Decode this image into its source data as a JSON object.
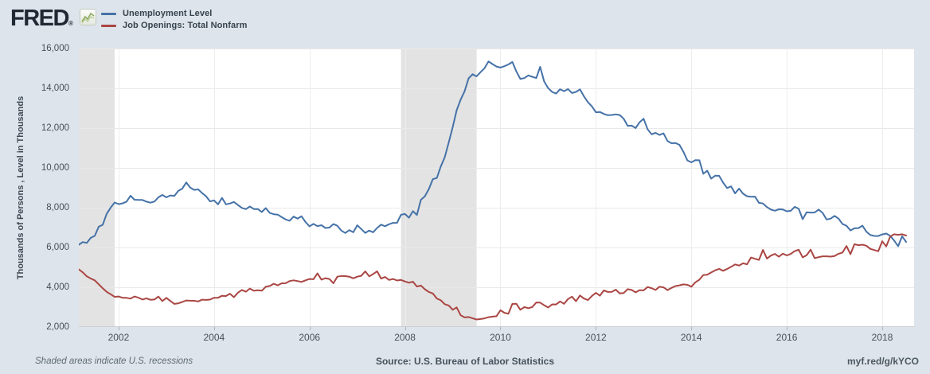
{
  "header": {
    "logo_text": "FRED",
    "logo_registered_mark": "®"
  },
  "legend": {
    "items": [
      {
        "label": "Unemployment Level",
        "color": "#4572a7"
      },
      {
        "label": "Job Openings: Total Nonfarm",
        "color": "#aa4643"
      }
    ]
  },
  "axes": {
    "y_title": "Thousands of Persons , Level in Thousands",
    "y_ticks": [
      {
        "value": 16000,
        "label": "16,000"
      },
      {
        "value": 14000,
        "label": "14,000"
      },
      {
        "value": 12000,
        "label": "12,000"
      },
      {
        "value": 10000,
        "label": "10,000"
      },
      {
        "value": 8000,
        "label": "8,000"
      },
      {
        "value": 6000,
        "label": "6,000"
      },
      {
        "value": 4000,
        "label": "4,000"
      },
      {
        "value": 2000,
        "label": "2,000"
      }
    ],
    "x_ticks": [
      {
        "year": 2002,
        "label": "2002"
      },
      {
        "year": 2004,
        "label": "2004"
      },
      {
        "year": 2006,
        "label": "2006"
      },
      {
        "year": 2008,
        "label": "2008"
      },
      {
        "year": 2010,
        "label": "2010"
      },
      {
        "year": 2012,
        "label": "2012"
      },
      {
        "year": 2014,
        "label": "2014"
      },
      {
        "year": 2016,
        "label": "2016"
      },
      {
        "year": 2018,
        "label": "2018"
      }
    ]
  },
  "footer": {
    "note": "Shaded areas indicate U.S. recessions",
    "source": "Source: U.S. Bureau of Labor Statistics",
    "link": "myf.red/g/kYCO"
  },
  "colors": {
    "page_background": "#dde4eb",
    "plot_background": "#ffffff",
    "recession_band": "#e3e3e3",
    "gridline": "#e9e9e9",
    "vertical_gridline": "#ededed",
    "axis_line": "#c9ced3",
    "series_blue": "#4572a7",
    "series_red": "#aa4643"
  },
  "chart_data": {
    "type": "line",
    "title": "Unemployment Level vs Job Openings: Total Nonfarm",
    "xlabel": "",
    "ylabel": "Thousands of Persons , Level in Thousands",
    "xlim": [
      2001.1667,
      2018.6667
    ],
    "ylim": [
      2000,
      16000
    ],
    "grid": true,
    "legend_position": "top-left",
    "x_start": 2001.1667,
    "x_step_years": 0.0833333,
    "frequency": "monthly",
    "recessions": [
      [
        2001.1667,
        2001.9167
      ],
      [
        2007.9167,
        2009.5
      ]
    ],
    "series": [
      {
        "name": "Unemployment Level",
        "color": "#4572a7",
        "values": [
          6141,
          6271,
          6226,
          6484,
          6583,
          7042,
          7142,
          7694,
          8003,
          8258,
          8182,
          8215,
          8304,
          8599,
          8399,
          8393,
          8390,
          8304,
          8251,
          8307,
          8520,
          8640,
          8520,
          8618,
          8588,
          8842,
          8957,
          9266,
          9011,
          8896,
          8921,
          8732,
          8576,
          8317,
          8370,
          8167,
          8491,
          8170,
          8212,
          8286,
          8136,
          7990,
          7927,
          8061,
          7932,
          7934,
          7784,
          7980,
          7737,
          7672,
          7651,
          7524,
          7406,
          7345,
          7553,
          7453,
          7566,
          7279,
          7064,
          7184,
          7072,
          7120,
          6980,
          7001,
          7175,
          7091,
          6847,
          6727,
          6872,
          6762,
          7116,
          6927,
          6731,
          6850,
          6766,
          6979,
          7149,
          7067,
          7170,
          7237,
          7240,
          7645,
          7685,
          7497,
          7822,
          7637,
          8395,
          8575,
          8937,
          9438,
          9494,
          10074,
          10538,
          11286,
          12058,
          12898,
          13426,
          13853,
          14499,
          14707,
          14601,
          14814,
          15009,
          15352,
          15219,
          15098,
          15046,
          15113,
          15202,
          15325,
          14849,
          14474,
          14512,
          14648,
          14579,
          14516,
          15081,
          14348,
          14013,
          13820,
          13737,
          13957,
          13855,
          13962,
          13763,
          13818,
          13948,
          13594,
          13302,
          13093,
          12797,
          12813,
          12713,
          12646,
          12660,
          12692,
          12656,
          12471,
          12115,
          12124,
          12005,
          12298,
          12471,
          11950,
          11689,
          11760,
          11654,
          11735,
          11353,
          11241,
          11251,
          11161,
          10814,
          10376,
          10280,
          10387,
          10384,
          9702,
          9859,
          9460,
          9608,
          9599,
          9262,
          8990,
          9071,
          8718,
          8962,
          8705,
          8575,
          8549,
          8555,
          8245,
          8211,
          8032,
          7902,
          7848,
          7921,
          7907,
          7820,
          7845,
          8044,
          7945,
          7420,
          7772,
          7751,
          7759,
          7904,
          7740,
          7409,
          7447,
          7587,
          7451,
          7178,
          7091,
          6858,
          6962,
          6977,
          7096,
          6795,
          6624,
          6580,
          6576,
          6655,
          6701,
          6583,
          6346,
          6065,
          6564,
          6280
        ]
      },
      {
        "name": "Job Openings: Total Nonfarm",
        "color": "#aa4643",
        "values": [
          4900,
          4750,
          4550,
          4440,
          4350,
          4150,
          3950,
          3770,
          3650,
          3520,
          3534,
          3472,
          3468,
          3430,
          3536,
          3475,
          3386,
          3442,
          3371,
          3385,
          3532,
          3302,
          3470,
          3313,
          3163,
          3193,
          3260,
          3334,
          3325,
          3321,
          3287,
          3377,
          3364,
          3379,
          3471,
          3472,
          3572,
          3561,
          3676,
          3499,
          3729,
          3866,
          3774,
          3938,
          3824,
          3853,
          3830,
          4025,
          4066,
          4175,
          4097,
          4200,
          4204,
          4312,
          4350,
          4312,
          4267,
          4348,
          4414,
          4402,
          4697,
          4383,
          4454,
          4416,
          4199,
          4532,
          4570,
          4561,
          4532,
          4450,
          4532,
          4578,
          4800,
          4550,
          4663,
          4803,
          4436,
          4516,
          4369,
          4416,
          4340,
          4369,
          4293,
          4227,
          4281,
          4036,
          4085,
          3900,
          3764,
          3690,
          3435,
          3344,
          3147,
          3083,
          2870,
          2990,
          2596,
          2482,
          2503,
          2442,
          2379,
          2404,
          2435,
          2497,
          2525,
          2542,
          2843,
          2716,
          2669,
          3163,
          3171,
          2869,
          3006,
          2948,
          3006,
          3236,
          3229,
          3096,
          2983,
          3139,
          3138,
          3287,
          3169,
          3409,
          3530,
          3295,
          3589,
          3433,
          3358,
          3566,
          3720,
          3577,
          3846,
          3764,
          3773,
          3881,
          3690,
          3711,
          3903,
          3865,
          3743,
          3856,
          3842,
          4013,
          3955,
          3863,
          4029,
          3994,
          3858,
          3970,
          4060,
          4095,
          4142,
          4125,
          4029,
          4249,
          4380,
          4616,
          4631,
          4744,
          4853,
          4922,
          4829,
          4921,
          5028,
          5148,
          5093,
          5205,
          5158,
          5497,
          5431,
          5378,
          5876,
          5445,
          5592,
          5676,
          5535,
          5690,
          5599,
          5676,
          5815,
          5889,
          5503,
          5613,
          5892,
          5463,
          5512,
          5557,
          5554,
          5539,
          5568,
          5682,
          5743,
          6071,
          5666,
          6163,
          6116,
          6140,
          6089,
          5930,
          5874,
          5811,
          6312,
          6052,
          6550,
          6662,
          6638,
          6662,
          6600
        ]
      }
    ]
  }
}
